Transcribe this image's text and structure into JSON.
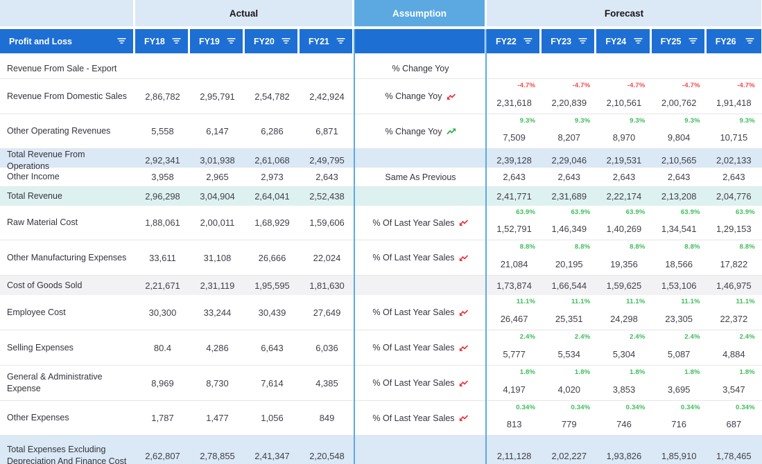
{
  "sections": {
    "actual": "Actual",
    "assumption": "Assumption",
    "forecast": "Forecast"
  },
  "header": {
    "label": "Profit and Loss",
    "actual_years": [
      "FY18",
      "FY19",
      "FY20",
      "FY21"
    ],
    "forecast_years": [
      "FY22",
      "FY23",
      "FY24",
      "FY25",
      "FY26"
    ]
  },
  "colors": {
    "header_blue": "#1d6fd3",
    "section_light_blue": "#dbe8f6",
    "assumption_blue": "#5ca9e2",
    "total_row_blue": "#dbe8f5",
    "total_row_cyan": "#def1f1",
    "total_row_gray": "#f2f2f4",
    "pct_green": "#3cbd59",
    "pct_red": "#f4494d"
  },
  "rows": [
    {
      "label": "Revenue From Sale - Export",
      "style": "plain",
      "assumption": "% Change Yoy",
      "trend": "",
      "actual": [
        "",
        "",
        "",
        ""
      ],
      "pct": "",
      "pct_color": "",
      "forecast": [
        "",
        "",
        "",
        "",
        ""
      ]
    },
    {
      "label": "Revenue From Domestic Sales",
      "style": "plain",
      "assumption": "% Change Yoy",
      "trend": "down",
      "actual": [
        "2,86,782",
        "2,95,791",
        "2,54,782",
        "2,42,924"
      ],
      "pct": "-4.7%",
      "pct_color": "red",
      "forecast": [
        "2,31,618",
        "2,20,839",
        "2,10,561",
        "2,00,762",
        "1,91,418"
      ]
    },
    {
      "label": "Other Operating Revenues",
      "style": "plain",
      "assumption": "% Change Yoy",
      "trend": "up",
      "actual": [
        "5,558",
        "6,147",
        "6,286",
        "6,871"
      ],
      "pct": "9.3%",
      "pct_color": "green",
      "forecast": [
        "7,509",
        "8,207",
        "8,970",
        "9,804",
        "10,715"
      ]
    },
    {
      "label": "Total Revenue From Operations",
      "style": "blue",
      "assumption": "",
      "trend": "",
      "actual": [
        "2,92,341",
        "3,01,938",
        "2,61,068",
        "2,49,795"
      ],
      "pct": "",
      "pct_color": "",
      "forecast": [
        "2,39,128",
        "2,29,046",
        "2,19,531",
        "2,10,565",
        "2,02,133"
      ]
    },
    {
      "label": "Other Income",
      "style": "plain",
      "assumption": "Same As Previous",
      "trend": "",
      "actual": [
        "3,958",
        "2,965",
        "2,973",
        "2,643"
      ],
      "pct": "",
      "pct_color": "",
      "forecast": [
        "2,643",
        "2,643",
        "2,643",
        "2,643",
        "2,643"
      ]
    },
    {
      "label": "Total Revenue",
      "style": "cyan",
      "assumption": "",
      "trend": "",
      "actual": [
        "2,96,298",
        "3,04,904",
        "2,64,041",
        "2,52,438"
      ],
      "pct": "",
      "pct_color": "",
      "forecast": [
        "2,41,771",
        "2,31,689",
        "2,22,174",
        "2,13,208",
        "2,04,776"
      ]
    },
    {
      "label": "Raw Material Cost",
      "style": "plain",
      "assumption": "% Of Last Year Sales",
      "trend": "down",
      "actual": [
        "1,88,061",
        "2,00,011",
        "1,68,929",
        "1,59,606"
      ],
      "pct": "63.9%",
      "pct_color": "green",
      "forecast": [
        "1,52,791",
        "1,46,349",
        "1,40,269",
        "1,34,541",
        "1,29,153"
      ]
    },
    {
      "label": "Other Manufacturing Expenses",
      "style": "plain",
      "assumption": "% Of Last Year Sales",
      "trend": "down",
      "actual": [
        "33,611",
        "31,108",
        "26,666",
        "22,024"
      ],
      "pct": "8.8%",
      "pct_color": "green",
      "forecast": [
        "21,084",
        "20,195",
        "19,356",
        "18,566",
        "17,822"
      ]
    },
    {
      "label": "Cost of Goods Sold",
      "style": "gray",
      "assumption": "",
      "trend": "",
      "actual": [
        "2,21,671",
        "2,31,119",
        "1,95,595",
        "1,81,630"
      ],
      "pct": "",
      "pct_color": "",
      "forecast": [
        "1,73,874",
        "1,66,544",
        "1,59,625",
        "1,53,106",
        "1,46,975"
      ]
    },
    {
      "label": "Employee Cost",
      "style": "plain",
      "assumption": "% Of Last Year Sales",
      "trend": "down",
      "actual": [
        "30,300",
        "33,244",
        "30,439",
        "27,649"
      ],
      "pct": "11.1%",
      "pct_color": "green",
      "forecast": [
        "26,467",
        "25,351",
        "24,298",
        "23,305",
        "22,372"
      ]
    },
    {
      "label": "Selling Expenses",
      "style": "plain",
      "assumption": "% Of Last Year Sales",
      "trend": "down",
      "actual": [
        "80.4",
        "4,286",
        "6,643",
        "6,036"
      ],
      "pct": "2.4%",
      "pct_color": "green",
      "forecast": [
        "5,777",
        "5,534",
        "5,304",
        "5,087",
        "4,884"
      ]
    },
    {
      "label": "General & Administrative Expense",
      "style": "plain",
      "assumption": "% Of Last Year Sales",
      "trend": "down",
      "actual": [
        "8,969",
        "8,730",
        "7,614",
        "4,385"
      ],
      "pct": "1.8%",
      "pct_color": "green",
      "forecast": [
        "4,197",
        "4,020",
        "3,853",
        "3,695",
        "3,547"
      ]
    },
    {
      "label": "Other Expenses",
      "style": "plain",
      "assumption": "% Of Last Year Sales",
      "trend": "down",
      "actual": [
        "1,787",
        "1,477",
        "1,056",
        "849"
      ],
      "pct": "0.34%",
      "pct_color": "green",
      "forecast": [
        "813",
        "779",
        "746",
        "716",
        "687"
      ]
    },
    {
      "label": "Total Expenses Excluding Depreciation And Finance Cost",
      "style": "blue",
      "assumption": "",
      "trend": "",
      "actual": [
        "2,62,807",
        "2,78,855",
        "2,41,347",
        "2,20,548"
      ],
      "pct": "",
      "pct_color": "",
      "forecast": [
        "2,11,128",
        "2,02,227",
        "1,93,826",
        "1,85,910",
        "1,78,465"
      ]
    }
  ]
}
